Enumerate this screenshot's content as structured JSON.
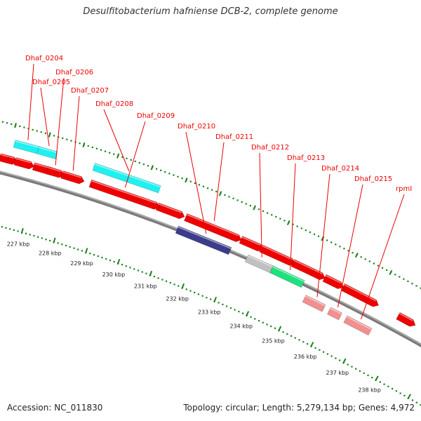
{
  "title": "Desulfitobacterium hafniense DCB-2, complete genome",
  "footer": {
    "accession": "Accession: NC_011830",
    "summary": "Topology: circular; Length: 5,279,134 bp; Genes: 4,972"
  },
  "colors": {
    "backbone": "#7a7a7a",
    "gene_red": "#ee0000",
    "cyan": "#20f0f0",
    "navy": "#3c3c8c",
    "gray": "#c0c0c0",
    "green": "#20e080",
    "pink": "#f09090",
    "ticks": "#208020",
    "label": "#ee0000"
  },
  "genes": [
    {
      "name": "Dhaf_0204",
      "start": 226.1,
      "end": 226.8,
      "strand": "+2",
      "color": "cyan"
    },
    {
      "name": "Dhaf_0205",
      "start": 226.8,
      "end": 227.35,
      "strand": "+2",
      "color": "cyan"
    },
    {
      "name": "Dhaf_0206",
      "start": 227.2,
      "end": 227.6,
      "strand": "+1",
      "color": "red"
    },
    {
      "name": "Dhaf_0207",
      "start": 227.65,
      "end": 228.2,
      "strand": "+1",
      "color": "red"
    },
    {
      "name": "Dhaf_0208",
      "start": 228.45,
      "end": 230.4,
      "strand": "+2",
      "color": "cyan"
    },
    {
      "name": "Dhaf_0209",
      "start": 228.5,
      "end": 230.45,
      "strand": "+1",
      "color": "red"
    },
    {
      "name": "Dhaf_0210",
      "start": 231.25,
      "end": 232.85,
      "strand": "-1",
      "color": "navy"
    },
    {
      "name": "Dhaf_0211",
      "start": 231.35,
      "end": 232.9,
      "strand": "+1",
      "color": "red"
    },
    {
      "name": "Dhaf_0212",
      "start": 233.35,
      "end": 234.1,
      "strand": "-1",
      "color": "gray"
    },
    {
      "name": "Dhaf_0213",
      "start": 234.1,
      "end": 235.05,
      "strand": "-1",
      "color": "green"
    },
    {
      "name": "Dhaf_0214",
      "start": 235.25,
      "end": 235.85,
      "strand": "-2",
      "color": "pink"
    },
    {
      "name": "Dhaf_0215",
      "start": 236.0,
      "end": 236.35,
      "strand": "-2",
      "color": "pink"
    },
    {
      "name": "rpmI",
      "start": 236.5,
      "end": 237.25,
      "strand": "-2",
      "color": "pink"
    }
  ],
  "extra_genes": [
    {
      "start": 225.35,
      "end": 225.75,
      "strand": "+1",
      "color": "red"
    },
    {
      "start": 225.8,
      "end": 226.05,
      "strand": "+1",
      "color": "red"
    },
    {
      "start": 226.05,
      "end": 226.2,
      "strand": "+1",
      "color": "red"
    },
    {
      "start": 226.25,
      "end": 226.7,
      "strand": "+1",
      "color": "red"
    },
    {
      "start": 226.8,
      "end": 227.35,
      "strand": "+1",
      "color": "red"
    },
    {
      "start": 230.5,
      "end": 231.2,
      "strand": "+1",
      "color": "red"
    },
    {
      "start": 233.0,
      "end": 233.55,
      "strand": "+1",
      "color": "red"
    },
    {
      "start": 233.6,
      "end": 234.5,
      "strand": "+1",
      "color": "red"
    },
    {
      "start": 234.55,
      "end": 235.15,
      "strand": "+1",
      "color": "red"
    },
    {
      "start": 235.15,
      "end": 235.4,
      "strand": "+1",
      "color": "red"
    },
    {
      "start": 235.5,
      "end": 235.95,
      "strand": "+1",
      "color": "red"
    },
    {
      "start": 236.05,
      "end": 237.0,
      "strand": "+1",
      "color": "red"
    },
    {
      "start": 237.7,
      "end": 238.1,
      "strand": "+1",
      "color": "red"
    }
  ],
  "ticks": [
    {
      "kbp": 227,
      "label": "227 kbp"
    },
    {
      "kbp": 228,
      "label": "228 kbp"
    },
    {
      "kbp": 229,
      "label": "229 kbp"
    },
    {
      "kbp": 230,
      "label": "230 kbp"
    },
    {
      "kbp": 231,
      "label": "231 kbp"
    },
    {
      "kbp": 232,
      "label": "232 kbp"
    },
    {
      "kbp": 233,
      "label": "233 kbp"
    },
    {
      "kbp": 234,
      "label": "234 kbp"
    },
    {
      "kbp": 235,
      "label": "235 kbp"
    },
    {
      "kbp": 236,
      "label": "236 kbp"
    },
    {
      "kbp": 237,
      "label": "237 kbp"
    },
    {
      "kbp": 238,
      "label": "238 kbp"
    }
  ]
}
